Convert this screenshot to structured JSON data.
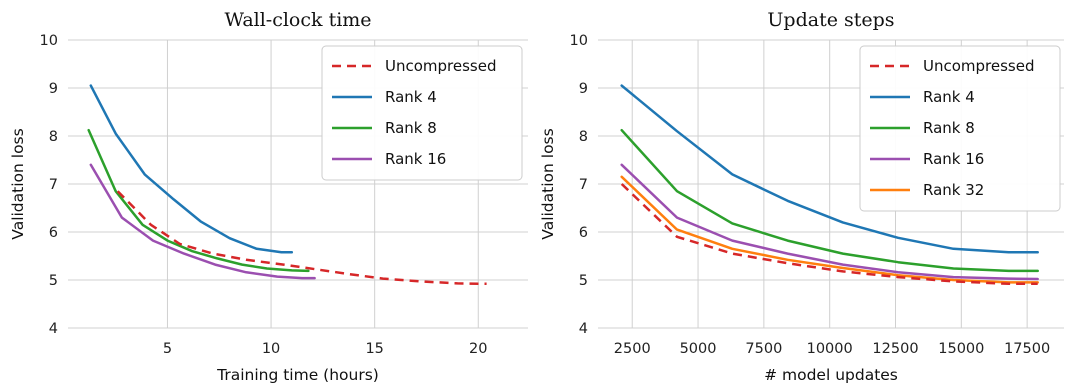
{
  "chart_data": [
    {
      "type": "line",
      "title": "Wall-clock time",
      "xlabel": "Training time (hours)",
      "ylabel": "Validation loss",
      "xlim": [
        0.2,
        22.4
      ],
      "ylim": [
        4,
        10
      ],
      "xticks": [
        5,
        10,
        15,
        20
      ],
      "yticks": [
        4,
        5,
        6,
        7,
        8,
        9,
        10
      ],
      "grid": true,
      "legend_position": "top-right",
      "series": [
        {
          "name": "Uncompressed",
          "color": "#d62728",
          "dash": true,
          "x": [
            2.6,
            4.2,
            5.6,
            7.2,
            8.8,
            10.6,
            12.2,
            13.8,
            15.4,
            17.2,
            19.0,
            20.4
          ],
          "y": [
            6.85,
            6.15,
            5.75,
            5.55,
            5.42,
            5.32,
            5.22,
            5.12,
            5.03,
            4.97,
            4.93,
            4.92
          ]
        },
        {
          "name": "Rank 4",
          "color": "#1f77b4",
          "x": [
            1.3,
            2.5,
            3.9,
            5.3,
            6.6,
            8.0,
            9.3,
            10.5,
            11.0
          ],
          "y": [
            9.05,
            8.05,
            7.2,
            6.68,
            6.22,
            5.87,
            5.65,
            5.58,
            5.58
          ]
        },
        {
          "name": "Rank 8",
          "color": "#2ca02c",
          "x": [
            1.2,
            2.5,
            3.8,
            5.0,
            6.2,
            7.4,
            8.6,
            9.8,
            11.0,
            11.8
          ],
          "y": [
            8.12,
            6.85,
            6.15,
            5.82,
            5.6,
            5.45,
            5.32,
            5.24,
            5.2,
            5.19
          ]
        },
        {
          "name": "Rank 16",
          "color": "#9b4fb0",
          "x": [
            1.3,
            2.8,
            4.3,
            5.8,
            7.3,
            8.8,
            10.3,
            11.5,
            12.1
          ],
          "y": [
            7.4,
            6.3,
            5.82,
            5.55,
            5.32,
            5.16,
            5.07,
            5.04,
            5.04
          ]
        }
      ]
    },
    {
      "type": "line",
      "title": "Update steps",
      "xlabel": "# model updates",
      "ylabel": "Validation loss",
      "xlim": [
        1200,
        18900
      ],
      "ylim": [
        4,
        10
      ],
      "xticks": [
        2500,
        5000,
        7500,
        10000,
        12500,
        15000,
        17500
      ],
      "yticks": [
        4,
        5,
        6,
        7,
        8,
        9,
        10
      ],
      "grid": true,
      "legend_position": "top-right",
      "series": [
        {
          "name": "Uncompressed",
          "color": "#d62728",
          "dash": true,
          "x": [
            2100,
            4200,
            6300,
            8400,
            10500,
            12600,
            14700,
            16800,
            17900
          ],
          "y": [
            7.0,
            5.9,
            5.55,
            5.35,
            5.18,
            5.06,
            4.97,
            4.92,
            4.92
          ]
        },
        {
          "name": "Rank 4",
          "color": "#1f77b4",
          "x": [
            2100,
            4200,
            6300,
            8400,
            10500,
            12600,
            14700,
            16800,
            17900
          ],
          "y": [
            9.05,
            8.1,
            7.2,
            6.65,
            6.2,
            5.88,
            5.65,
            5.58,
            5.58
          ]
        },
        {
          "name": "Rank 8",
          "color": "#2ca02c",
          "x": [
            2100,
            4200,
            6300,
            8400,
            10500,
            12600,
            14700,
            16800,
            17900
          ],
          "y": [
            8.12,
            6.85,
            6.18,
            5.82,
            5.55,
            5.37,
            5.24,
            5.19,
            5.19
          ]
        },
        {
          "name": "Rank 16",
          "color": "#9b4fb0",
          "x": [
            2100,
            4200,
            6300,
            8400,
            10500,
            12600,
            14700,
            16800,
            17900
          ],
          "y": [
            7.4,
            6.3,
            5.82,
            5.55,
            5.32,
            5.16,
            5.06,
            5.03,
            5.02
          ]
        },
        {
          "name": "Rank 32",
          "color": "#ff7f0e",
          "x": [
            2100,
            4200,
            6300,
            8400,
            10500,
            12600,
            14700,
            16800,
            17900
          ],
          "y": [
            7.15,
            6.05,
            5.65,
            5.42,
            5.25,
            5.1,
            5.0,
            4.95,
            4.95
          ]
        }
      ]
    }
  ]
}
